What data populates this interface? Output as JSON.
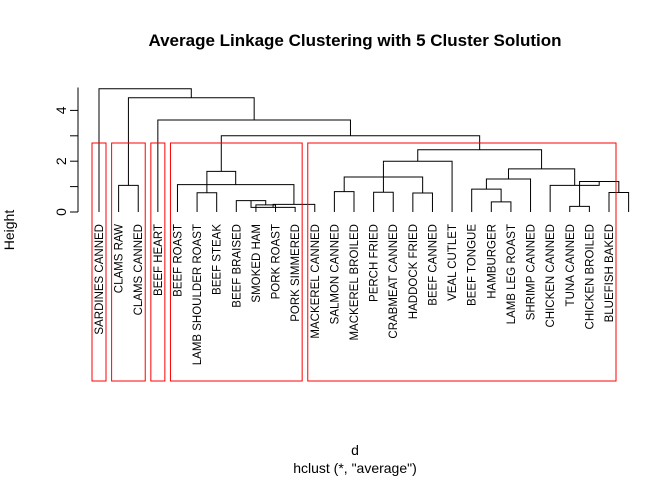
{
  "chart_data": {
    "type": "dendrogram",
    "title": "Average Linkage Clustering with 5 Cluster Solution",
    "xlabel": "d",
    "sublabel": "hclust (*, \"average\")",
    "ylabel": "Height",
    "ylim": [
      0,
      5
    ],
    "yticks": [
      0,
      2,
      4
    ],
    "leaves": [
      "SARDINES CANNED",
      "CLAMS RAW",
      "CLAMS CANNED",
      "BEEF HEART",
      "BEEF ROAST",
      "LAMB SHOULDER ROAST",
      "BEEF STEAK",
      "BEEF BRAISED",
      "SMOKED HAM",
      "PORK ROAST",
      "PORK SIMMERED",
      "MACKEREL CANNED",
      "SALMON CANNED",
      "MACKEREL BROILED",
      "PERCH FRIED",
      "CRABMEAT CANNED",
      "HADDOCK FRIED",
      "BEEF CANNED",
      "VEAL CUTLET",
      "BEEF TONGUE",
      "HAMBURGER",
      "LAMB LEG ROAST",
      "SHRIMP CANNED",
      "CHICKEN CANNED",
      "TUNA CANNED",
      "CHICKEN BROILED",
      "BLUEFISH BAKED"
    ],
    "merges": [
      [
        -9,
        -10,
        0.28
      ],
      [
        -8,
        1,
        0.45
      ],
      [
        -25,
        -26,
        0.22
      ],
      [
        -22,
        -21,
        0.4
      ],
      [
        -17,
        -18,
        0.75
      ],
      [
        -15,
        -16,
        0.78
      ],
      [
        -13,
        -14,
        0.8
      ],
      [
        -6,
        -7,
        0.76
      ],
      [
        -2,
        -3,
        1.05
      ],
      [
        -11,
        2,
        0.18
      ],
      [
        -27,
        -28,
        0.77
      ],
      [
        -12,
        10,
        0.3
      ],
      [
        -20,
        4,
        0.9
      ],
      [
        -5,
        12,
        1.08
      ],
      [
        3,
        11,
        1.2
      ],
      [
        5,
        7,
        1.38
      ],
      [
        -23,
        13,
        1.3
      ],
      [
        -24,
        15,
        1.05
      ],
      [
        14,
        8,
        1.6
      ],
      [
        17,
        18,
        1.7
      ],
      [
        16,
        6,
        1.92
      ],
      [
        -19,
        21,
        2.0
      ],
      [
        22,
        20,
        2.45
      ],
      [
        19,
        23,
        3.0
      ],
      [
        -4,
        24,
        3.62
      ],
      [
        9,
        25,
        4.5
      ],
      [
        -1,
        26,
        4.85
      ]
    ],
    "clusters": [
      {
        "leaves": [
          0,
          0
        ],
        "color": "#ff0000"
      },
      {
        "leaves": [
          1,
          2
        ],
        "color": "#ff0000"
      },
      {
        "leaves": [
          3,
          3
        ],
        "color": "#ff0000"
      },
      {
        "leaves": [
          4,
          10
        ],
        "color": "#ff0000"
      },
      {
        "leaves": [
          11,
          26
        ],
        "color": "#ff0000"
      }
    ],
    "grid": false
  }
}
